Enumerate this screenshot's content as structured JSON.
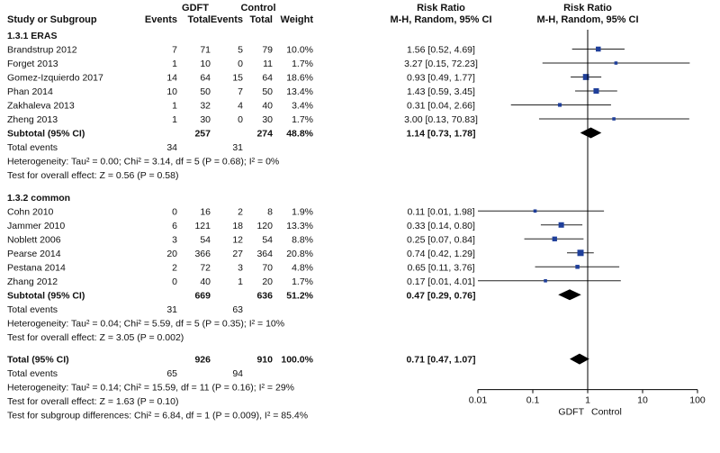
{
  "header": {
    "col_study": "Study or Subgroup",
    "group1": "GDFT",
    "group2": "Control",
    "events": "Events",
    "total": "Total",
    "weight": "Weight",
    "rr_title": "Risk Ratio",
    "rr_method": "M-H, Random, 95% CI"
  },
  "subgroups": [
    {
      "title": "1.3.1 ERAS",
      "studies": [
        {
          "name": "Brandstrup 2012",
          "e1": "7",
          "n1": "71",
          "e2": "5",
          "n2": "79",
          "weight": "10.0%",
          "ci_text": "1.56 [0.52, 4.69]"
        },
        {
          "name": "Forget 2013",
          "e1": "1",
          "n1": "10",
          "e2": "0",
          "n2": "11",
          "weight": "1.7%",
          "ci_text": "3.27 [0.15, 72.23]"
        },
        {
          "name": "Gomez-Izquierdo 2017",
          "e1": "14",
          "n1": "64",
          "e2": "15",
          "n2": "64",
          "weight": "18.6%",
          "ci_text": "0.93 [0.49, 1.77]"
        },
        {
          "name": "Phan 2014",
          "e1": "10",
          "n1": "50",
          "e2": "7",
          "n2": "50",
          "weight": "13.4%",
          "ci_text": "1.43 [0.59, 3.45]"
        },
        {
          "name": "Zakhaleva 2013",
          "e1": "1",
          "n1": "32",
          "e2": "4",
          "n2": "40",
          "weight": "3.4%",
          "ci_text": "0.31 [0.04, 2.66]"
        },
        {
          "name": "Zheng 2013",
          "e1": "1",
          "n1": "30",
          "e2": "0",
          "n2": "30",
          "weight": "1.7%",
          "ci_text": "3.00 [0.13, 70.83]"
        }
      ],
      "subtotal": {
        "label": "Subtotal (95% CI)",
        "n1": "257",
        "n2": "274",
        "weight": "48.8%",
        "ci_text": "1.14 [0.73, 1.78]"
      },
      "total_events": {
        "label": "Total events",
        "e1": "34",
        "e2": "31"
      },
      "heterogeneity": "Heterogeneity: Tau² = 0.00; Chi² = 3.14, df = 5 (P = 0.68); I² = 0%",
      "overall": "Test for overall effect: Z = 0.56 (P = 0.58)"
    },
    {
      "title": "1.3.2 common",
      "studies": [
        {
          "name": "Cohn 2010",
          "e1": "0",
          "n1": "16",
          "e2": "2",
          "n2": "8",
          "weight": "1.9%",
          "ci_text": "0.11 [0.01, 1.98]"
        },
        {
          "name": "Jammer 2010",
          "e1": "6",
          "n1": "121",
          "e2": "18",
          "n2": "120",
          "weight": "13.3%",
          "ci_text": "0.33 [0.14, 0.80]"
        },
        {
          "name": "Noblett 2006",
          "e1": "3",
          "n1": "54",
          "e2": "12",
          "n2": "54",
          "weight": "8.8%",
          "ci_text": "0.25 [0.07, 0.84]"
        },
        {
          "name": "Pearse 2014",
          "e1": "20",
          "n1": "366",
          "e2": "27",
          "n2": "364",
          "weight": "20.8%",
          "ci_text": "0.74 [0.42, 1.29]"
        },
        {
          "name": "Pestana 2014",
          "e1": "2",
          "n1": "72",
          "e2": "3",
          "n2": "70",
          "weight": "4.8%",
          "ci_text": "0.65 [0.11, 3.76]"
        },
        {
          "name": "Zhang 2012",
          "e1": "0",
          "n1": "40",
          "e2": "1",
          "n2": "20",
          "weight": "1.7%",
          "ci_text": "0.17 [0.01, 4.01]"
        }
      ],
      "subtotal": {
        "label": "Subtotal (95% CI)",
        "n1": "669",
        "n2": "636",
        "weight": "51.2%",
        "ci_text": "0.47 [0.29, 0.76]"
      },
      "total_events": {
        "label": "Total events",
        "e1": "31",
        "e2": "63"
      },
      "heterogeneity": "Heterogeneity: Tau² = 0.04; Chi² = 5.59, df = 5 (P = 0.35); I² = 10%",
      "overall": "Test for overall effect: Z = 3.05 (P = 0.002)"
    }
  ],
  "total": {
    "label": "Total (95% CI)",
    "n1": "926",
    "n2": "910",
    "weight": "100.0%",
    "ci_text": "0.71 [0.47, 1.07]",
    "total_events": {
      "label": "Total events",
      "e1": "65",
      "e2": "94"
    },
    "heterogeneity": "Heterogeneity: Tau² = 0.14; Chi² = 15.59, df = 11 (P = 0.16); I² = 29%",
    "overall": "Test for overall effect: Z = 1.63 (P = 0.10)",
    "subgroup_diff": "Test for subgroup differences: Chi² = 6.84, df = 1 (P = 0.009), I² = 85.4%"
  },
  "chart_data": {
    "type": "forest",
    "scale": "log",
    "xlim": [
      0.01,
      100
    ],
    "ticks": [
      "0.01",
      "0.1",
      "1",
      "10",
      "100"
    ],
    "tick_values": [
      0.01,
      0.1,
      1,
      10,
      100
    ],
    "reference_line": 1,
    "favours_left": "GDFT",
    "favours_right": "Control",
    "studies": [
      {
        "name": "Brandstrup 2012",
        "rr": 1.56,
        "lo": 0.52,
        "hi": 4.69,
        "weight": 10.0
      },
      {
        "name": "Forget 2013",
        "rr": 3.27,
        "lo": 0.15,
        "hi": 72.23,
        "weight": 1.7
      },
      {
        "name": "Gomez-Izquierdo 2017",
        "rr": 0.93,
        "lo": 0.49,
        "hi": 1.77,
        "weight": 18.6
      },
      {
        "name": "Phan 2014",
        "rr": 1.43,
        "lo": 0.59,
        "hi": 3.45,
        "weight": 13.4
      },
      {
        "name": "Zakhaleva 2013",
        "rr": 0.31,
        "lo": 0.04,
        "hi": 2.66,
        "weight": 3.4
      },
      {
        "name": "Zheng 2013",
        "rr": 3.0,
        "lo": 0.13,
        "hi": 70.83,
        "weight": 1.7
      },
      {
        "name": "Cohn 2010",
        "rr": 0.11,
        "lo": 0.01,
        "hi": 1.98,
        "weight": 1.9
      },
      {
        "name": "Jammer 2010",
        "rr": 0.33,
        "lo": 0.14,
        "hi": 0.8,
        "weight": 13.3
      },
      {
        "name": "Noblett 2006",
        "rr": 0.25,
        "lo": 0.07,
        "hi": 0.84,
        "weight": 8.8
      },
      {
        "name": "Pearse 2014",
        "rr": 0.74,
        "lo": 0.42,
        "hi": 1.29,
        "weight": 20.8
      },
      {
        "name": "Pestana 2014",
        "rr": 0.65,
        "lo": 0.11,
        "hi": 3.76,
        "weight": 4.8
      },
      {
        "name": "Zhang 2012",
        "rr": 0.17,
        "lo": 0.01,
        "hi": 4.01,
        "weight": 1.7
      }
    ],
    "pooled": [
      {
        "name": "Subtotal ERAS",
        "rr": 1.14,
        "lo": 0.73,
        "hi": 1.78
      },
      {
        "name": "Subtotal common",
        "rr": 0.47,
        "lo": 0.29,
        "hi": 0.76
      },
      {
        "name": "Total",
        "rr": 0.71,
        "lo": 0.47,
        "hi": 1.07
      }
    ],
    "colors": {
      "square": "#1f3f9a",
      "diamond": "#000000",
      "line": "#222222"
    }
  }
}
